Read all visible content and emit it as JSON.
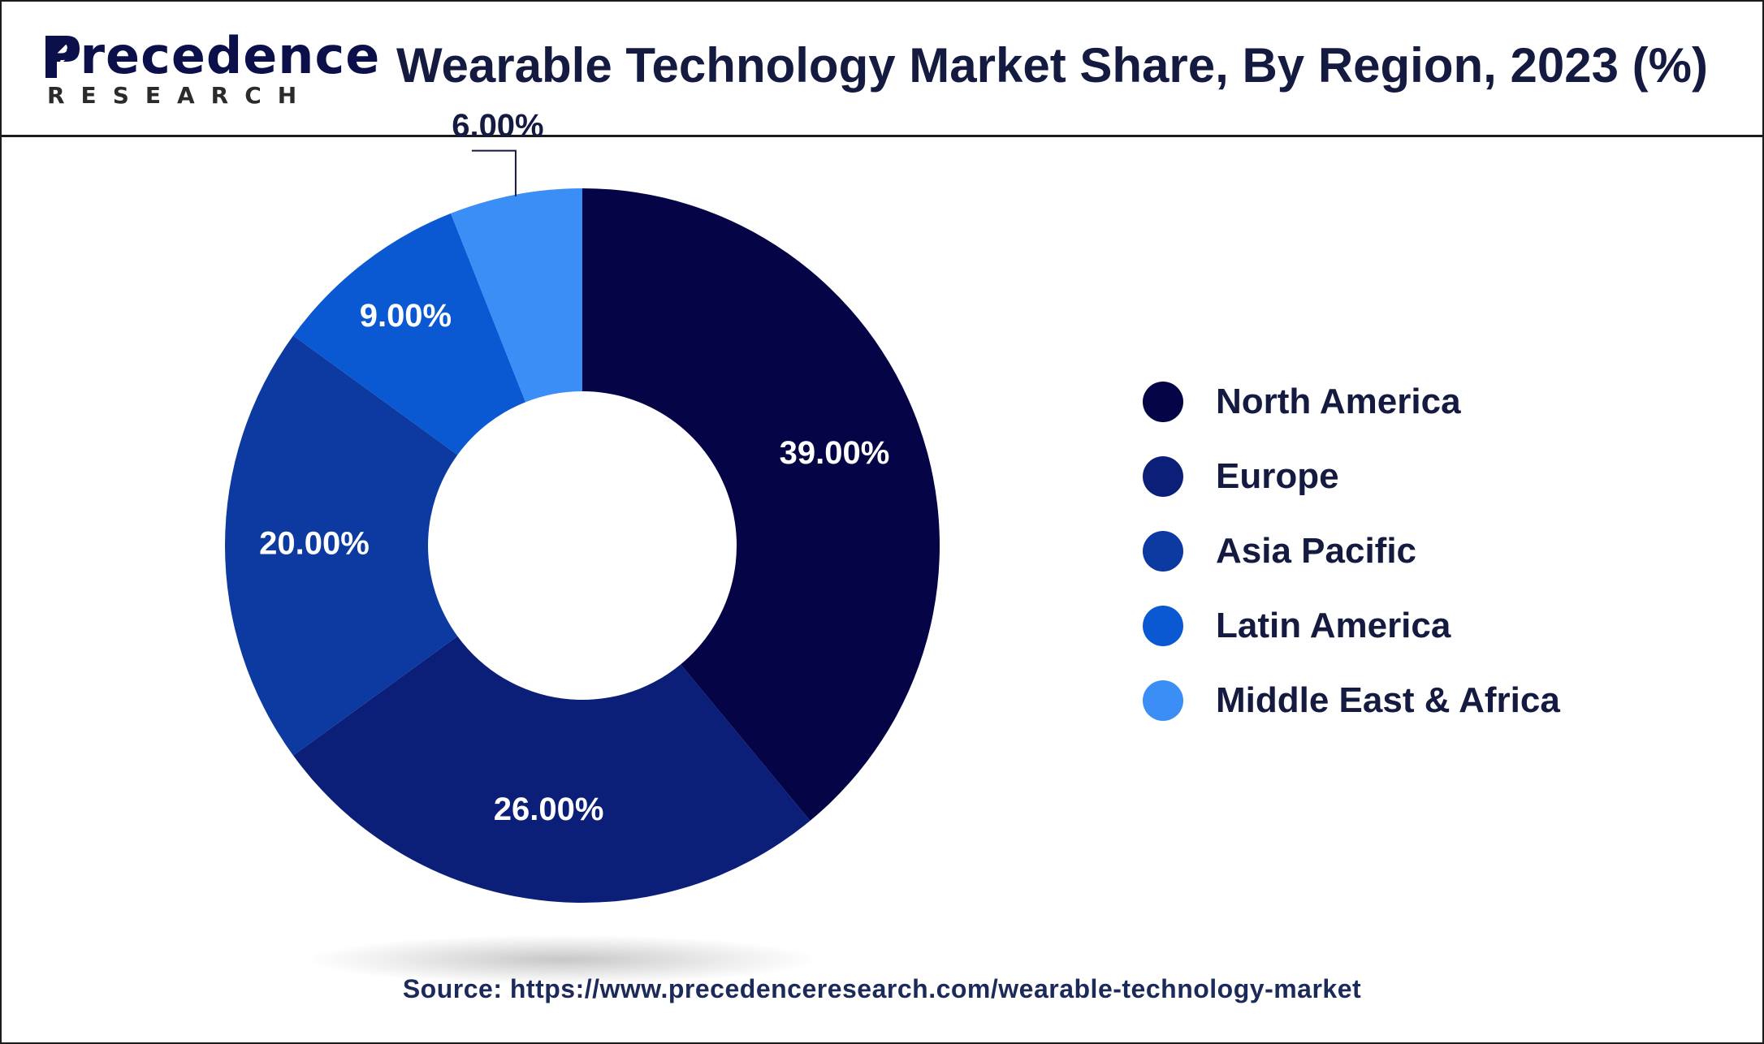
{
  "header": {
    "logo_name": "Precedence",
    "logo_sub": "RESEARCH",
    "title": "Wearable Technology Market Share, By Region, 2023 (%)"
  },
  "chart_data": {
    "type": "pie",
    "variant": "donut",
    "title": "Wearable Technology Market Share, By Region, 2023 (%)",
    "categories": [
      "North America",
      "Europe",
      "Asia Pacific",
      "Latin America",
      "Middle East & Africa"
    ],
    "values": [
      39.0,
      26.0,
      20.0,
      9.0,
      6.0
    ],
    "value_labels": [
      "39.00%",
      "26.00%",
      "20.00%",
      "9.00%",
      "6.00%"
    ],
    "colors": [
      "#050447",
      "#0b1f78",
      "#0c3aa0",
      "#0a58d2",
      "#3a8ef6"
    ],
    "start_angle": "12 o'clock",
    "direction": "clockwise",
    "legend_position": "right"
  },
  "legend": {
    "items": [
      {
        "label": "North America",
        "color": "#050447"
      },
      {
        "label": "Europe",
        "color": "#0b1f78"
      },
      {
        "label": "Asia Pacific",
        "color": "#0c3aa0"
      },
      {
        "label": "Latin America",
        "color": "#0a58d2"
      },
      {
        "label": "Middle East & Africa",
        "color": "#3a8ef6"
      }
    ]
  },
  "footer": {
    "source": "Source: https://www.precedenceresearch.com/wearable-technology-market"
  }
}
